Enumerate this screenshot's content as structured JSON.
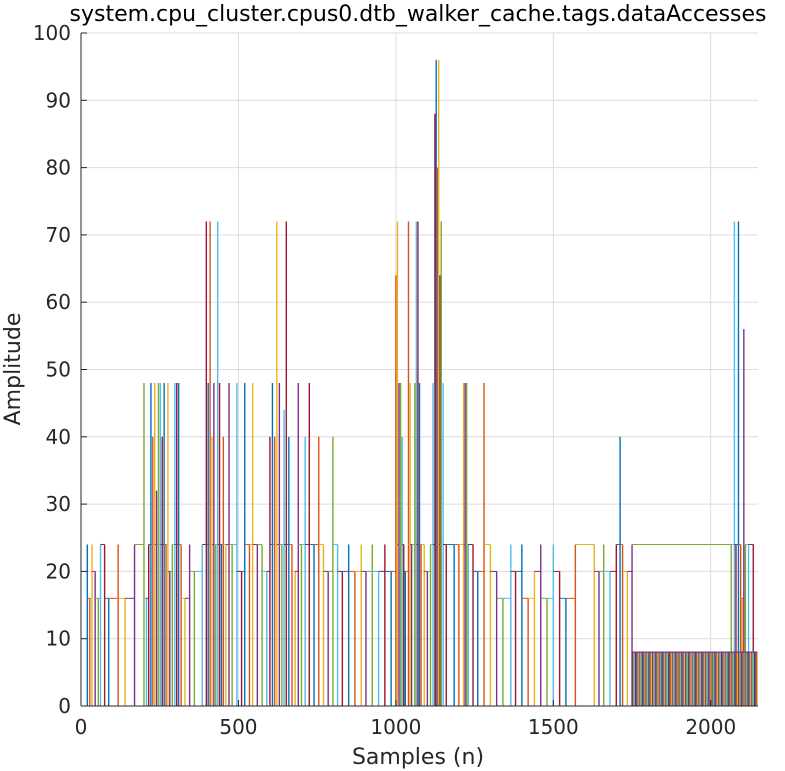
{
  "chart_data": {
    "type": "line",
    "title": "system.cpu_cluster.cpus0.dtb_walker_cache.tags.dataAccesses",
    "xlabel": "Samples (n)",
    "ylabel": "Amplitude",
    "xlim": [
      0,
      2150
    ],
    "ylim": [
      0,
      100
    ],
    "grid": true,
    "x_ticks": [
      0,
      500,
      1000,
      1500,
      2000
    ],
    "y_ticks": [
      0,
      10,
      20,
      30,
      40,
      50,
      60,
      70,
      80,
      90,
      100
    ],
    "colors": [
      "#0072BD",
      "#D95319",
      "#EDB120",
      "#7E2F8E",
      "#77AC30",
      "#4DBEEE",
      "#A2142F"
    ],
    "spikes": [
      [
        20,
        24
      ],
      [
        28,
        16
      ],
      [
        35,
        24
      ],
      [
        45,
        20
      ],
      [
        55,
        16
      ],
      [
        62,
        24
      ],
      [
        75,
        24
      ],
      [
        88,
        16
      ],
      [
        118,
        24
      ],
      [
        140,
        16
      ],
      [
        170,
        24
      ],
      [
        200,
        48
      ],
      [
        208,
        16
      ],
      [
        215,
        24
      ],
      [
        222,
        48
      ],
      [
        228,
        40
      ],
      [
        234,
        48
      ],
      [
        240,
        32
      ],
      [
        246,
        48
      ],
      [
        252,
        48
      ],
      [
        258,
        40
      ],
      [
        264,
        48
      ],
      [
        270,
        24
      ],
      [
        276,
        48
      ],
      [
        282,
        20
      ],
      [
        290,
        24
      ],
      [
        298,
        48
      ],
      [
        304,
        48
      ],
      [
        310,
        48
      ],
      [
        318,
        24
      ],
      [
        330,
        16
      ],
      [
        345,
        24
      ],
      [
        360,
        20
      ],
      [
        385,
        24
      ],
      [
        398,
        72
      ],
      [
        404,
        48
      ],
      [
        410,
        72
      ],
      [
        416,
        40
      ],
      [
        422,
        48
      ],
      [
        428,
        24
      ],
      [
        434,
        72
      ],
      [
        440,
        48
      ],
      [
        446,
        24
      ],
      [
        452,
        40
      ],
      [
        460,
        24
      ],
      [
        470,
        48
      ],
      [
        480,
        24
      ],
      [
        495,
        48
      ],
      [
        510,
        20
      ],
      [
        520,
        48
      ],
      [
        535,
        24
      ],
      [
        545,
        48
      ],
      [
        560,
        24
      ],
      [
        575,
        24
      ],
      [
        590,
        20
      ],
      [
        600,
        40
      ],
      [
        608,
        48
      ],
      [
        615,
        40
      ],
      [
        622,
        72
      ],
      [
        630,
        48
      ],
      [
        638,
        24
      ],
      [
        645,
        44
      ],
      [
        652,
        72
      ],
      [
        660,
        40
      ],
      [
        670,
        24
      ],
      [
        680,
        20
      ],
      [
        690,
        48
      ],
      [
        700,
        24
      ],
      [
        712,
        40
      ],
      [
        725,
        48
      ],
      [
        740,
        24
      ],
      [
        755,
        40
      ],
      [
        770,
        24
      ],
      [
        785,
        20
      ],
      [
        800,
        40
      ],
      [
        815,
        24
      ],
      [
        830,
        20
      ],
      [
        850,
        24
      ],
      [
        870,
        20
      ],
      [
        890,
        24
      ],
      [
        905,
        20
      ],
      [
        925,
        24
      ],
      [
        945,
        20
      ],
      [
        965,
        24
      ],
      [
        985,
        20
      ],
      [
        1000,
        64
      ],
      [
        1005,
        72
      ],
      [
        1010,
        48
      ],
      [
        1015,
        48
      ],
      [
        1020,
        40
      ],
      [
        1025,
        24
      ],
      [
        1030,
        20
      ],
      [
        1040,
        72
      ],
      [
        1045,
        48
      ],
      [
        1050,
        24
      ],
      [
        1060,
        48
      ],
      [
        1065,
        72
      ],
      [
        1070,
        72
      ],
      [
        1075,
        48
      ],
      [
        1080,
        24
      ],
      [
        1090,
        24
      ],
      [
        1100,
        20
      ],
      [
        1110,
        24
      ],
      [
        1118,
        48
      ],
      [
        1124,
        88
      ],
      [
        1128,
        96
      ],
      [
        1132,
        80
      ],
      [
        1136,
        96
      ],
      [
        1140,
        64
      ],
      [
        1144,
        72
      ],
      [
        1150,
        48
      ],
      [
        1160,
        24
      ],
      [
        1185,
        24
      ],
      [
        1200,
        24
      ],
      [
        1215,
        48
      ],
      [
        1220,
        48
      ],
      [
        1225,
        48
      ],
      [
        1230,
        24
      ],
      [
        1245,
        24
      ],
      [
        1260,
        20
      ],
      [
        1280,
        48
      ],
      [
        1300,
        24
      ],
      [
        1320,
        20
      ],
      [
        1340,
        16
      ],
      [
        1365,
        24
      ],
      [
        1380,
        20
      ],
      [
        1400,
        24
      ],
      [
        1420,
        16
      ],
      [
        1440,
        20
      ],
      [
        1460,
        24
      ],
      [
        1480,
        16
      ],
      [
        1500,
        24
      ],
      [
        1520,
        20
      ],
      [
        1540,
        16
      ],
      [
        1570,
        24
      ],
      [
        1630,
        24
      ],
      [
        1645,
        20
      ],
      [
        1660,
        24
      ],
      [
        1680,
        20
      ],
      [
        1700,
        24
      ],
      [
        1712,
        40
      ],
      [
        1720,
        24
      ],
      [
        1735,
        20
      ],
      [
        1750,
        24
      ],
      [
        2065,
        24
      ],
      [
        2075,
        72
      ],
      [
        2080,
        24
      ],
      [
        2088,
        72
      ],
      [
        2095,
        24
      ],
      [
        2100,
        16
      ],
      [
        2105,
        56
      ],
      [
        2110,
        24
      ],
      [
        2120,
        24
      ],
      [
        2135,
        24
      ],
      [
        2145,
        8
      ]
    ]
  }
}
